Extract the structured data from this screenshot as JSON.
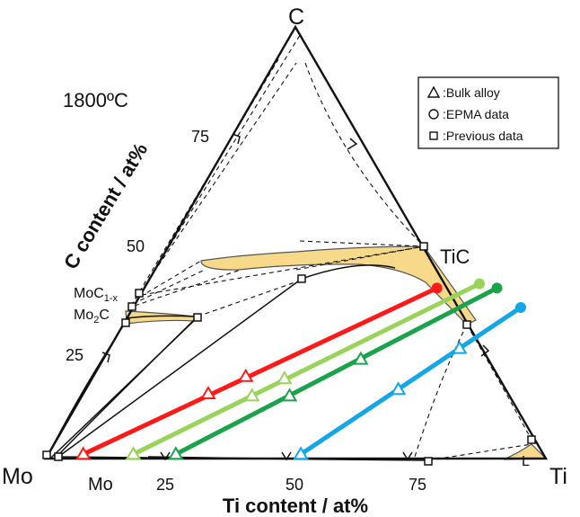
{
  "temperature": "1800ºC",
  "vertices": {
    "top": "C",
    "left": "Mo",
    "right": "Ti"
  },
  "phase_labels": {
    "tic": "TiC",
    "moc": "MoC",
    "moc_sub": "1-x",
    "mo2c_main": "Mo",
    "mo2c_sub": "2",
    "mo2c_end": "C",
    "mo_bcc": "Mo",
    "liquid": "L"
  },
  "axes": {
    "ti": {
      "label": "Ti content / at%",
      "ticks": [
        "25",
        "50",
        "75"
      ]
    },
    "c": {
      "label": "C content / at%",
      "ticks": [
        "25",
        "50",
        "75"
      ]
    }
  },
  "legend": [
    {
      "symbol": "triangle",
      "label": ":Bulk alloy"
    },
    {
      "symbol": "circle",
      "label": ":EPMA data"
    },
    {
      "symbol": "square",
      "label": ":Previous data"
    }
  ],
  "tie_lines": [
    {
      "color": "#ff1a1a",
      "points": [
        [
          7,
          1
        ],
        [
          58.5,
          39.5
        ]
      ],
      "bulk": [
        [
          7,
          1
        ],
        [
          25,
          15
        ],
        [
          30.5,
          19
        ]
      ],
      "epma": [
        58.5,
        39.5
      ]
    },
    {
      "color": "#99d35a",
      "points": [
        [
          17,
          1
        ],
        [
          66.5,
          40.5
        ]
      ],
      "bulk": [
        [
          17,
          1
        ],
        [
          34,
          14.5
        ],
        [
          38.5,
          18.5
        ]
      ],
      "epma": [
        66.5,
        40.5
      ]
    },
    {
      "color": "#1aa34a",
      "points": [
        [
          25.5,
          1
        ],
        [
          70.5,
          39.5
        ]
      ],
      "bulk": [
        [
          25.5,
          1
        ],
        [
          41.5,
          14.5
        ],
        [
          51.5,
          23
        ]
      ],
      "epma": [
        70.5,
        39.5
      ]
    },
    {
      "color": "#12a8e8",
      "points": [
        [
          50.5,
          1
        ],
        [
          77.5,
          35
        ]
      ],
      "bulk": [
        [
          50.5,
          1
        ],
        [
          62.5,
          16
        ],
        [
          70,
          25.5
        ]
      ],
      "epma": [
        77.5,
        35
      ]
    }
  ]
}
